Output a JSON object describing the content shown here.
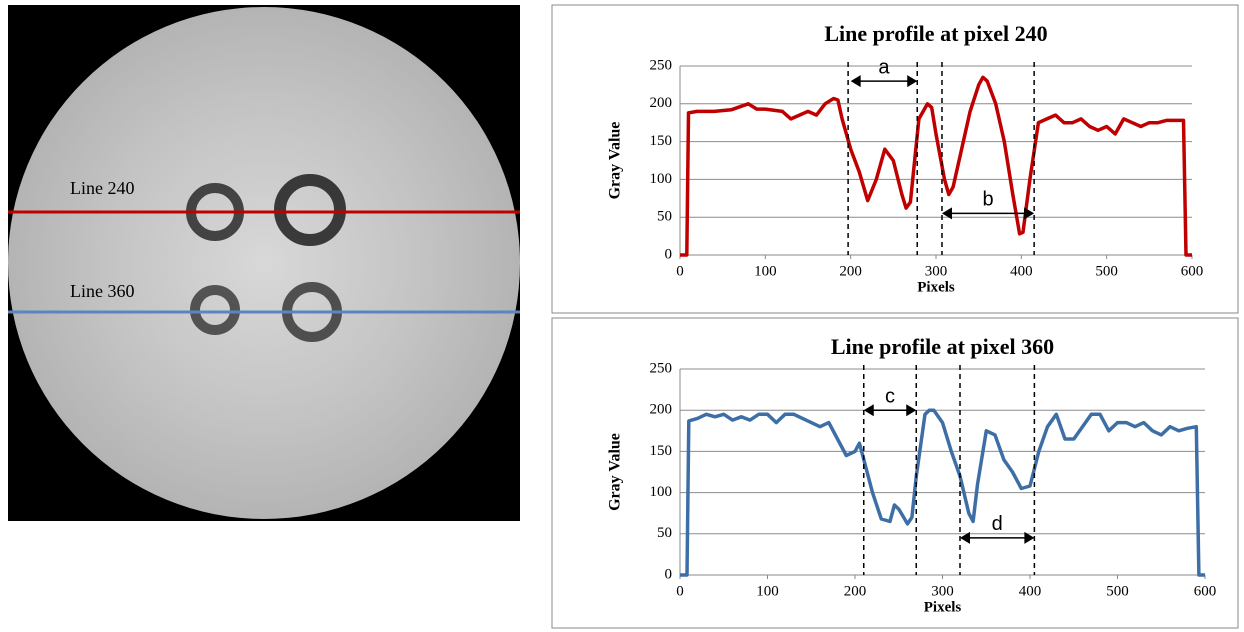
{
  "image": {
    "labels": [
      "Line 240",
      "Line 360"
    ]
  },
  "chart_data": [
    {
      "type": "line",
      "title": "Line profile at pixel 240",
      "x_label": "Pixels",
      "y_label": "Gray Value",
      "color": "#c00000",
      "xlim": [
        0,
        600
      ],
      "xticks": [
        0,
        100,
        200,
        300,
        400,
        500,
        600
      ],
      "ylim": [
        0,
        250
      ],
      "yticks": [
        0,
        50,
        100,
        150,
        200,
        250
      ],
      "grid": true,
      "x": [
        0,
        8,
        10,
        20,
        40,
        60,
        80,
        90,
        100,
        120,
        130,
        140,
        150,
        160,
        170,
        180,
        185,
        190,
        200,
        210,
        220,
        230,
        240,
        250,
        260,
        265,
        270,
        280,
        290,
        295,
        300,
        310,
        315,
        320,
        330,
        340,
        350,
        355,
        360,
        370,
        380,
        390,
        398,
        402,
        410,
        420,
        430,
        440,
        450,
        460,
        470,
        480,
        490,
        500,
        510,
        520,
        530,
        540,
        550,
        560,
        570,
        580,
        590,
        593,
        600
      ],
      "values": [
        0,
        0,
        188,
        190,
        190,
        192,
        200,
        193,
        193,
        190,
        180,
        185,
        190,
        185,
        200,
        207,
        205,
        180,
        140,
        110,
        72,
        100,
        140,
        125,
        80,
        62,
        70,
        180,
        200,
        195,
        160,
        100,
        80,
        90,
        140,
        190,
        225,
        235,
        230,
        200,
        150,
        80,
        28,
        30,
        100,
        175,
        180,
        185,
        175,
        175,
        180,
        170,
        165,
        170,
        160,
        180,
        175,
        170,
        175,
        175,
        178,
        178,
        178,
        0,
        0
      ],
      "vlines": [
        197,
        278,
        307,
        415
      ],
      "annotations": [
        {
          "text": "a",
          "x0": 200,
          "x1": 278,
          "y": 230
        },
        {
          "text": "b",
          "x0": 307,
          "x1": 415,
          "y": 55
        }
      ]
    },
    {
      "type": "line",
      "title": "Line profile at pixel 360",
      "x_label": "Pixels",
      "y_label": "Gray Value",
      "color": "#3d6fa6",
      "xlim": [
        0,
        600
      ],
      "xticks": [
        0,
        100,
        200,
        300,
        400,
        500,
        600
      ],
      "ylim": [
        0,
        250
      ],
      "yticks": [
        0,
        50,
        100,
        150,
        200,
        250
      ],
      "grid": true,
      "x": [
        0,
        8,
        10,
        20,
        30,
        40,
        50,
        60,
        70,
        80,
        90,
        100,
        110,
        120,
        130,
        140,
        150,
        160,
        170,
        180,
        190,
        200,
        205,
        210,
        220,
        230,
        240,
        245,
        250,
        260,
        265,
        270,
        280,
        285,
        290,
        300,
        310,
        320,
        330,
        335,
        340,
        350,
        360,
        370,
        380,
        390,
        400,
        410,
        420,
        430,
        440,
        450,
        460,
        470,
        480,
        490,
        500,
        510,
        520,
        530,
        540,
        550,
        560,
        570,
        580,
        590,
        593,
        600
      ],
      "values": [
        0,
        0,
        187,
        190,
        195,
        192,
        195,
        188,
        192,
        188,
        195,
        195,
        185,
        195,
        195,
        190,
        185,
        180,
        185,
        165,
        145,
        150,
        160,
        140,
        100,
        68,
        65,
        85,
        80,
        62,
        70,
        120,
        195,
        200,
        200,
        185,
        150,
        120,
        75,
        65,
        110,
        175,
        170,
        140,
        125,
        105,
        108,
        150,
        180,
        195,
        165,
        165,
        180,
        195,
        195,
        175,
        185,
        185,
        180,
        185,
        175,
        170,
        180,
        175,
        178,
        180,
        0,
        0
      ],
      "vlines": [
        210,
        270,
        320,
        405
      ],
      "annotations": [
        {
          "text": "c",
          "x0": 210,
          "x1": 270,
          "y": 200
        },
        {
          "text": "d",
          "x0": 320,
          "x1": 405,
          "y": 45
        }
      ]
    }
  ]
}
